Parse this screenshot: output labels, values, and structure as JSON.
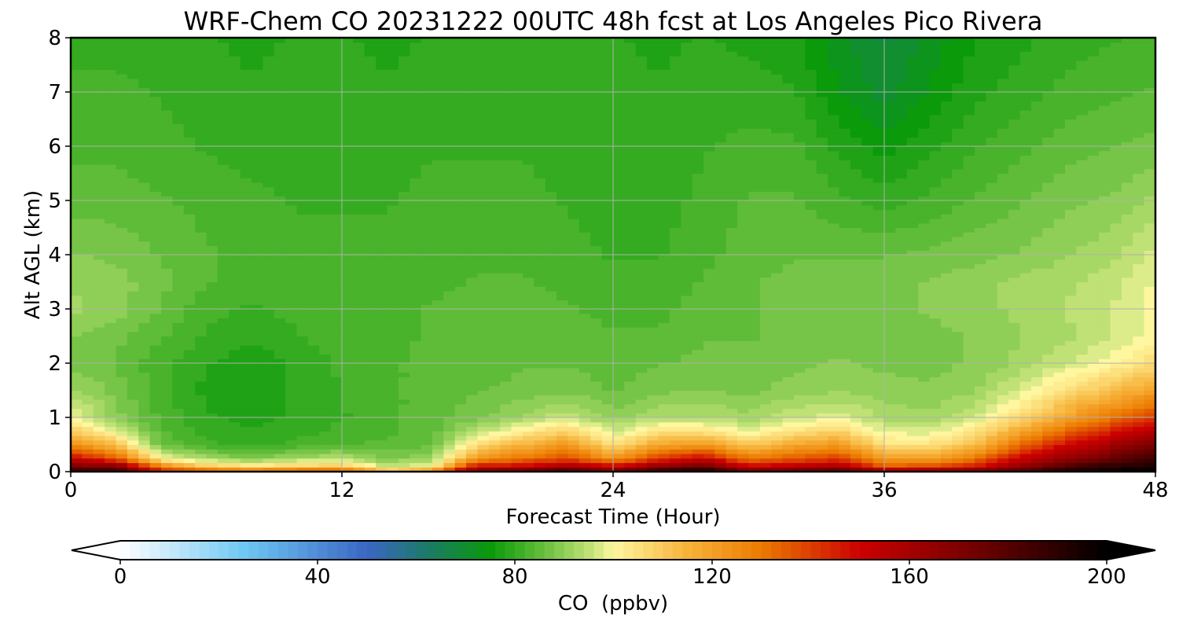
{
  "chart_data": {
    "type": "heatmap",
    "title": "WRF-Chem CO  20231222 00UTC 48h fcst at Los Angeles Pico Rivera",
    "xlabel": "Forecast Time (Hour)",
    "ylabel": "Alt AGL (km)",
    "xlim": [
      0,
      48
    ],
    "ylim": [
      0,
      8
    ],
    "xticks": [
      0,
      12,
      24,
      36,
      48
    ],
    "yticks": [
      0,
      1,
      2,
      3,
      4,
      5,
      6,
      7,
      8
    ],
    "grid": true,
    "x": [
      0,
      2,
      4,
      6,
      8,
      10,
      12,
      14,
      16,
      18,
      20,
      22,
      24,
      26,
      28,
      30,
      32,
      34,
      36,
      38,
      40,
      42,
      44,
      46,
      48
    ],
    "y": [
      0,
      0.1,
      0.25,
      0.5,
      0.75,
      1,
      1.5,
      2,
      2.5,
      3,
      3.5,
      4,
      5,
      6,
      7,
      8
    ],
    "z": [
      [
        190,
        190,
        150,
        140,
        135,
        140,
        140,
        115,
        130,
        175,
        180,
        190,
        175,
        195,
        200,
        175,
        180,
        185,
        170,
        170,
        175,
        185,
        195,
        200,
        200
      ],
      [
        170,
        170,
        125,
        110,
        105,
        108,
        110,
        95,
        100,
        150,
        150,
        160,
        150,
        165,
        175,
        150,
        155,
        160,
        135,
        138,
        145,
        165,
        180,
        190,
        195
      ],
      [
        150,
        135,
        100,
        92,
        88,
        92,
        94,
        88,
        92,
        122,
        130,
        138,
        122,
        140,
        150,
        130,
        135,
        140,
        120,
        120,
        130,
        150,
        165,
        175,
        185
      ],
      [
        125,
        112,
        86,
        82,
        80,
        82,
        84,
        84,
        86,
        106,
        115,
        122,
        105,
        118,
        122,
        110,
        118,
        122,
        105,
        104,
        112,
        132,
        148,
        160,
        170
      ],
      [
        110,
        98,
        84,
        80,
        79,
        80,
        82,
        83,
        85,
        94,
        102,
        108,
        96,
        105,
        104,
        98,
        104,
        108,
        98,
        97,
        104,
        118,
        132,
        145,
        158
      ],
      [
        100,
        90,
        83,
        79,
        78,
        79,
        81,
        83,
        85,
        88,
        92,
        96,
        90,
        94,
        94,
        92,
        96,
        98,
        93,
        92,
        96,
        106,
        118,
        130,
        140
      ],
      [
        92,
        88,
        82,
        78,
        77,
        79,
        81,
        83,
        85,
        86,
        87,
        88,
        86,
        88,
        89,
        88,
        90,
        91,
        90,
        89,
        91,
        97,
        105,
        112,
        120
      ],
      [
        88,
        86,
        82,
        79,
        77,
        79,
        82,
        83,
        85,
        85,
        86,
        86,
        85,
        86,
        87,
        87,
        88,
        89,
        88,
        88,
        89,
        92,
        96,
        100,
        106
      ],
      [
        89,
        87,
        84,
        81,
        79,
        81,
        83,
        83,
        84,
        85,
        85,
        85,
        84,
        84,
        86,
        86,
        87,
        88,
        88,
        88,
        89,
        91,
        93,
        96,
        100
      ],
      [
        92,
        90,
        86,
        82,
        81,
        82,
        83,
        83,
        84,
        85,
        85,
        84,
        83,
        83,
        85,
        86,
        87,
        88,
        88,
        89,
        90,
        92,
        94,
        96,
        100
      ],
      [
        91,
        90,
        87,
        84,
        82,
        82,
        83,
        82,
        83,
        84,
        84,
        83,
        82,
        82,
        84,
        86,
        87,
        88,
        88,
        89,
        90,
        92,
        93,
        95,
        99
      ],
      [
        89,
        88,
        86,
        84,
        83,
        82,
        82,
        82,
        83,
        83,
        83,
        82,
        81,
        81,
        83,
        85,
        86,
        86,
        86,
        87,
        88,
        89,
        91,
        93,
        97
      ],
      [
        85,
        85,
        84,
        83,
        82,
        81,
        81,
        81,
        82,
        82,
        82,
        81,
        80,
        80,
        82,
        84,
        84,
        82,
        80,
        82,
        84,
        86,
        88,
        89,
        92
      ],
      [
        83,
        83,
        82,
        81,
        80,
        80,
        81,
        80,
        81,
        81,
        81,
        80,
        80,
        79,
        81,
        82,
        82,
        78,
        75,
        78,
        81,
        83,
        85,
        86,
        87
      ],
      [
        82,
        82,
        81,
        80,
        79,
        80,
        80,
        79,
        80,
        81,
        81,
        80,
        80,
        79,
        80,
        80,
        79,
        74,
        70,
        74,
        78,
        80,
        82,
        83,
        84
      ],
      [
        80,
        80,
        80,
        79,
        78,
        79,
        79,
        78,
        79,
        80,
        80,
        79,
        79,
        78,
        79,
        78,
        77,
        72,
        68,
        72,
        76,
        78,
        80,
        81,
        82
      ]
    ],
    "colorbar": {
      "label": "CO  (ppbv)",
      "ticks": [
        0,
        40,
        80,
        120,
        160,
        200
      ],
      "range": [
        0,
        200
      ],
      "extend": "both",
      "stops": [
        {
          "v": 0,
          "c": "#ffffff"
        },
        {
          "v": 25,
          "c": "#6fc8f3"
        },
        {
          "v": 50,
          "c": "#3a66c4"
        },
        {
          "v": 62,
          "c": "#1c7a6a"
        },
        {
          "v": 75,
          "c": "#0a9a0a"
        },
        {
          "v": 84,
          "c": "#55b832"
        },
        {
          "v": 96,
          "c": "#c9e57c"
        },
        {
          "v": 100,
          "c": "#fff7a0"
        },
        {
          "v": 115,
          "c": "#f7b23a"
        },
        {
          "v": 130,
          "c": "#ec7a00"
        },
        {
          "v": 150,
          "c": "#cc0000"
        },
        {
          "v": 175,
          "c": "#6b0000"
        },
        {
          "v": 200,
          "c": "#000000"
        }
      ]
    }
  }
}
